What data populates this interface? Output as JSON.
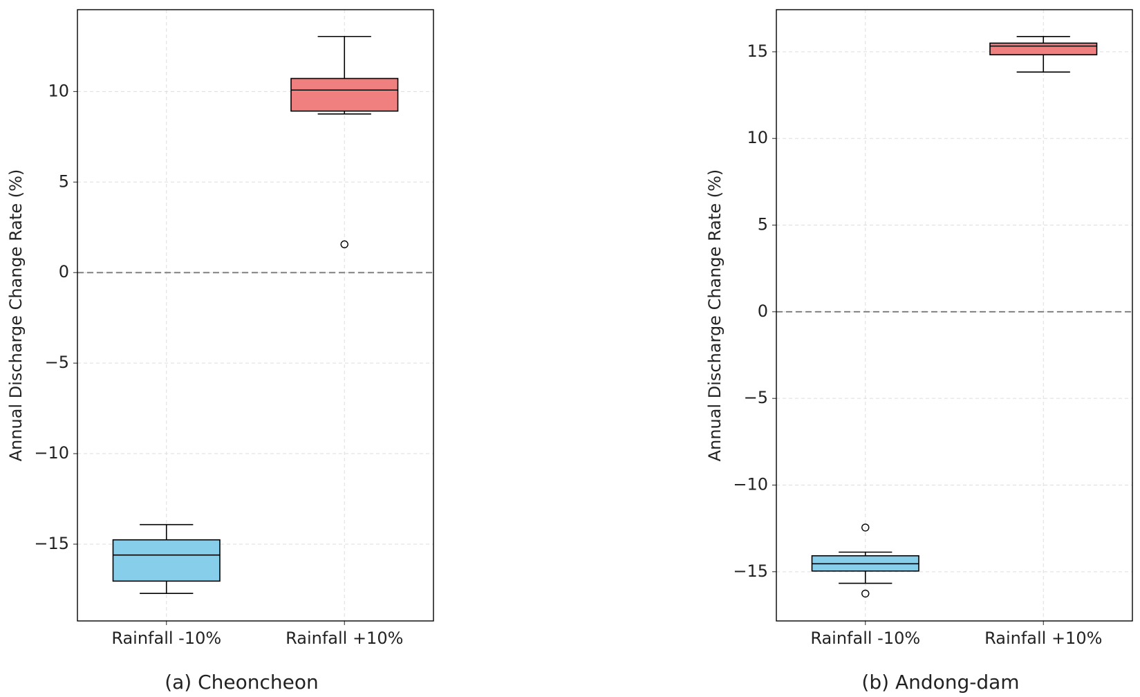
{
  "chart_data": [
    {
      "type": "box",
      "title": "(a) Cheoncheon",
      "ylabel": "Annual Discharge Change Rate (%)",
      "categories": [
        "Rainfall -10%",
        "Rainfall +10%"
      ],
      "colors": [
        "#87ceeb",
        "#f08080"
      ],
      "boxes": [
        {
          "whislo": -17.72,
          "q1": -17.04,
          "med": -15.6,
          "q3": -14.76,
          "whishi": -13.92,
          "fliers": []
        },
        {
          "whislo": 8.76,
          "q1": 8.92,
          "med": 10.08,
          "q3": 10.72,
          "whishi": 13.04,
          "fliers": [
            1.56
          ]
        }
      ],
      "reference_line": 0,
      "grid": true,
      "ylim": [
        -19.24,
        14.52
      ],
      "yticks": [
        {
          "value": -15,
          "label": "−15"
        },
        {
          "value": -10,
          "label": "−10"
        },
        {
          "value": -5,
          "label": "−5"
        },
        0,
        5,
        10
      ]
    },
    {
      "type": "box",
      "title": "(b) Andong-dam",
      "ylabel": "Annual Discharge Change Rate (%)",
      "categories": [
        "Rainfall -10%",
        "Rainfall +10%"
      ],
      "colors": [
        "#87ceeb",
        "#f08080"
      ],
      "boxes": [
        {
          "whislo": -15.67,
          "q1": -14.96,
          "med": -14.54,
          "q3": -14.08,
          "whishi": -13.87,
          "fliers": [
            -12.45,
            -16.26
          ]
        },
        {
          "whislo": 13.83,
          "q1": 14.83,
          "med": 15.33,
          "q3": 15.5,
          "whishi": 15.88,
          "fliers": []
        }
      ],
      "reference_line": 0,
      "grid": true,
      "ylim": [
        -17.84,
        17.43
      ],
      "yticks": [
        {
          "value": -15,
          "label": "−15"
        },
        {
          "value": -10,
          "label": "−10"
        },
        {
          "value": -5,
          "label": "−5"
        },
        0,
        5,
        10,
        15
      ]
    }
  ]
}
